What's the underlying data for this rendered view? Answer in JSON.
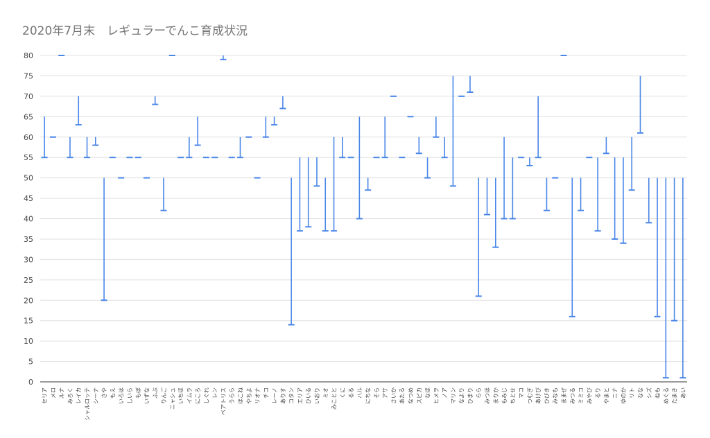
{
  "chart_data": {
    "type": "bar",
    "title": "2020年7月末　レギュラーでんこ育成状況",
    "xlabel": "",
    "ylabel": "",
    "ylim": [
      0,
      80
    ],
    "yticks": [
      0,
      5,
      10,
      15,
      20,
      25,
      30,
      35,
      40,
      45,
      50,
      55,
      60,
      65,
      70,
      75,
      80
    ],
    "grid": true,
    "legend": "none",
    "color": "#4a86e8",
    "categories": [
      "セリア",
      "メロ",
      "ルナ",
      "みろく",
      "レイカ",
      "シャルロッテ",
      "シーナ",
      "さや",
      "もえ",
      "いろは",
      "しいら",
      "もぼ",
      "いずな",
      "ふぶ",
      "りんご",
      "ニャシュ",
      "いちほ",
      "イムラ",
      "にころ",
      "しぐれ",
      "レン",
      "ベアトリス",
      "うらら",
      "ほこね",
      "やちよ",
      "リオナ",
      "チコ",
      "レーノ",
      "ありす",
      "コタン",
      "エリア",
      "ひいる",
      "いおり",
      "ミオ",
      "みことと",
      "くに",
      "るる",
      "ハル",
      "にちな",
      "そら",
      "アサ",
      "さいか",
      "あたる",
      "なつめ",
      "スピカ",
      "なほ",
      "ヒメヲ",
      "ノア",
      "マリン",
      "なより",
      "ひまり",
      "らら",
      "みつほ",
      "まりか",
      "もみじ",
      "ちとせ",
      "マコ",
      "つむぎ",
      "あけび",
      "ひびき",
      "みなも",
      "ままぜ",
      "みつる",
      "ミミコ",
      "みやび",
      "るり",
      "やまと",
      "ニナ",
      "ゆのか",
      "リト",
      "なな",
      "シズ",
      "ねも",
      "めぐる",
      "たまき",
      "あい"
    ],
    "series": [
      {
        "values": [
          [
            55,
            65
          ],
          [
            60,
            60
          ],
          [
            80,
            80
          ],
          [
            55,
            60
          ],
          [
            63,
            70
          ],
          [
            55,
            60
          ],
          [
            58,
            60
          ],
          [
            20,
            50
          ],
          [
            55,
            55
          ],
          [
            50,
            50
          ],
          [
            55,
            55
          ],
          [
            55,
            55
          ],
          [
            50,
            50
          ],
          [
            68,
            70
          ],
          [
            42,
            50
          ],
          [
            80,
            80
          ],
          [
            55,
            55
          ],
          [
            55,
            60
          ],
          [
            58,
            65
          ],
          [
            55,
            55
          ],
          [
            55,
            55
          ],
          [
            79,
            80
          ],
          [
            55,
            55
          ],
          [
            55,
            60
          ],
          [
            60,
            60
          ],
          [
            50,
            50
          ],
          [
            60,
            65
          ],
          [
            63,
            65
          ],
          [
            67,
            70
          ],
          [
            14,
            50
          ],
          [
            37,
            55
          ],
          [
            38,
            55
          ],
          [
            48,
            55
          ],
          [
            37,
            50
          ],
          [
            37,
            60
          ],
          [
            55,
            60
          ],
          [
            55,
            55
          ],
          [
            40,
            65
          ],
          [
            47,
            50
          ],
          [
            55,
            55
          ],
          [
            55,
            65
          ],
          [
            70,
            70
          ],
          [
            55,
            55
          ],
          [
            65,
            65
          ],
          [
            56,
            60
          ],
          [
            50,
            55
          ],
          [
            60,
            65
          ],
          [
            55,
            60
          ],
          [
            48,
            75
          ],
          [
            70,
            70
          ],
          [
            71,
            75
          ],
          [
            21,
            50
          ],
          [
            41,
            50
          ],
          [
            33,
            50
          ],
          [
            40,
            60
          ],
          [
            40,
            55
          ],
          [
            55,
            55
          ],
          [
            53,
            55
          ],
          [
            55,
            70
          ],
          [
            42,
            50
          ],
          [
            50,
            50
          ],
          [
            80,
            80
          ],
          [
            16,
            50
          ],
          [
            42,
            50
          ],
          [
            55,
            55
          ],
          [
            37,
            55
          ],
          [
            56,
            60
          ],
          [
            35,
            55
          ],
          [
            34,
            55
          ],
          [
            47,
            60
          ],
          [
            61,
            75
          ],
          [
            39,
            50
          ],
          [
            16,
            50
          ],
          [
            1,
            50
          ],
          [
            15,
            50
          ],
          [
            1,
            50
          ]
        ]
      }
    ]
  }
}
